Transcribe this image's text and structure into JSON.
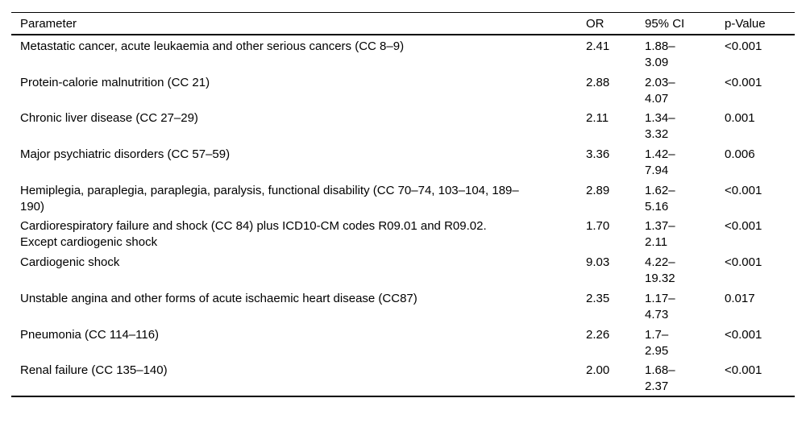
{
  "document": {
    "background_color": "#ffffff",
    "text_color": "#000000",
    "rule_color": "#000000"
  },
  "table": {
    "columns": [
      {
        "label": "Parameter"
      },
      {
        "label": "OR"
      },
      {
        "label": "95% CI"
      },
      {
        "label": "p-Value"
      }
    ],
    "rows": [
      {
        "param_lines": [
          "Metastatic cancer, acute leukaemia and other serious cancers (CC 8–9)"
        ],
        "or": "2.41",
        "ci_lines": [
          "1.88–",
          "3.09"
        ],
        "p": "<0.001"
      },
      {
        "param_lines": [
          "Protein-calorie malnutrition (CC 21)"
        ],
        "or": "2.88",
        "ci_lines": [
          "2.03–",
          "4.07"
        ],
        "p": "<0.001"
      },
      {
        "param_lines": [
          "Chronic liver disease (CC 27–29)"
        ],
        "or": "2.11",
        "ci_lines": [
          "1.34–",
          "3.32"
        ],
        "p": "0.001"
      },
      {
        "param_lines": [
          "Major psychiatric disorders (CC 57–59)"
        ],
        "or": "3.36",
        "ci_lines": [
          "1.42–",
          "7.94"
        ],
        "p": "0.006"
      },
      {
        "param_lines": [
          "Hemiplegia, paraplegia, paraplegia, paralysis, functional disability (CC 70–74, 103–104, 189–",
          "190)"
        ],
        "or": "2.89",
        "ci_lines": [
          "1.62–",
          "5.16"
        ],
        "p": "<0.001"
      },
      {
        "param_lines": [
          "Cardiorespiratory failure and shock (CC 84) plus ICD10-CM codes R09.01 and R09.02.",
          "Except cardiogenic shock"
        ],
        "or": "1.70",
        "ci_lines": [
          "1.37–",
          "2.11"
        ],
        "p": "<0.001"
      },
      {
        "param_lines": [
          "Cardiogenic shock"
        ],
        "or": "9.03",
        "ci_lines": [
          "4.22–",
          "19.32"
        ],
        "p": "<0.001"
      },
      {
        "param_lines": [
          "Unstable angina and other forms of acute ischaemic heart disease (CC87)"
        ],
        "or": "2.35",
        "ci_lines": [
          "1.17–",
          "4.73"
        ],
        "p": "0.017"
      },
      {
        "param_lines": [
          "Pneumonia (CC 114–116)"
        ],
        "or": "2.26",
        "ci_lines": [
          "1.7–",
          "2.95"
        ],
        "p": "<0.001"
      },
      {
        "param_lines": [
          "Renal failure (CC 135–140)"
        ],
        "or": "2.00",
        "ci_lines": [
          "1.68–",
          "2.37"
        ],
        "p": "<0.001"
      }
    ]
  }
}
